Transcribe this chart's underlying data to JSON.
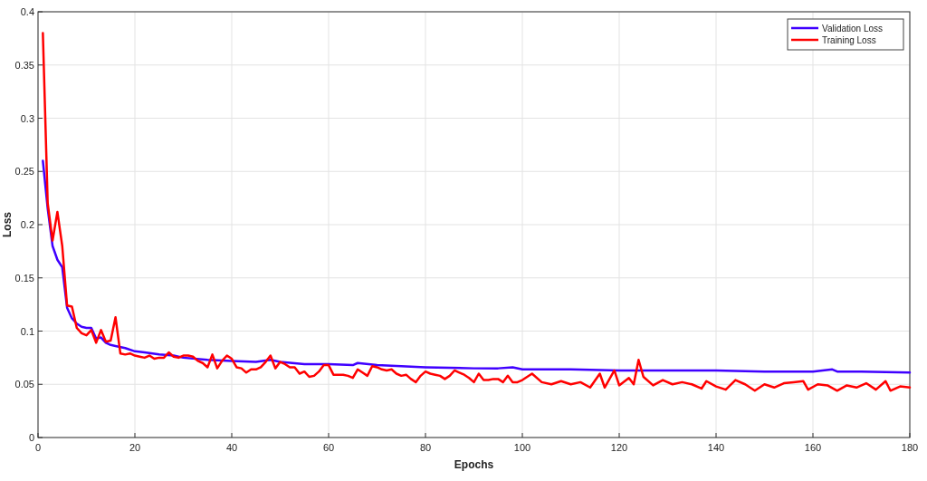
{
  "chart_data": {
    "type": "line",
    "xlabel": "Epochs",
    "ylabel": "Loss",
    "xlim": [
      0,
      180
    ],
    "ylim": [
      0,
      0.4
    ],
    "xticks": [
      0,
      20,
      40,
      60,
      80,
      100,
      120,
      140,
      160,
      180
    ],
    "yticks": [
      0,
      0.05,
      0.1,
      0.15,
      0.2,
      0.25,
      0.3,
      0.35,
      0.4
    ],
    "grid": true,
    "legend": "top right",
    "marker": "none",
    "line_style": "solid",
    "series": [
      {
        "name": "Validation Loss",
        "color": "#3f00ff",
        "x": [
          1,
          2,
          3,
          4,
          5,
          6,
          7,
          8,
          9,
          10,
          11,
          12,
          13,
          14,
          15,
          16,
          18,
          20,
          22,
          25,
          28,
          30,
          35,
          40,
          45,
          48,
          50,
          55,
          60,
          65,
          66,
          70,
          75,
          80,
          90,
          95,
          98,
          100,
          110,
          120,
          130,
          140,
          150,
          160,
          164,
          165,
          170,
          180
        ],
        "values": [
          0.26,
          0.215,
          0.18,
          0.167,
          0.16,
          0.122,
          0.112,
          0.107,
          0.104,
          0.103,
          0.103,
          0.093,
          0.094,
          0.089,
          0.087,
          0.086,
          0.084,
          0.081,
          0.08,
          0.078,
          0.077,
          0.075,
          0.073,
          0.072,
          0.071,
          0.073,
          0.071,
          0.069,
          0.069,
          0.068,
          0.07,
          0.068,
          0.067,
          0.066,
          0.065,
          0.065,
          0.066,
          0.064,
          0.064,
          0.063,
          0.063,
          0.063,
          0.062,
          0.062,
          0.064,
          0.062,
          0.062,
          0.061
        ]
      },
      {
        "name": "Training Loss",
        "color": "#ff0000",
        "x": [
          1,
          2,
          3,
          4,
          5,
          6,
          7,
          8,
          9,
          10,
          11,
          12,
          13,
          14,
          15,
          16,
          17,
          18,
          19,
          20,
          21,
          22,
          23,
          24,
          25,
          26,
          27,
          28,
          29,
          30,
          31,
          32,
          33,
          34,
          35,
          36,
          37,
          38,
          39,
          40,
          41,
          42,
          43,
          44,
          45,
          46,
          47,
          48,
          49,
          50,
          51,
          52,
          53,
          54,
          55,
          56,
          57,
          58,
          59,
          60,
          61,
          62,
          63,
          64,
          65,
          66,
          67,
          68,
          69,
          70,
          71,
          72,
          73,
          74,
          75,
          76,
          77,
          78,
          79,
          80,
          81,
          82,
          83,
          84,
          85,
          86,
          87,
          88,
          89,
          90,
          91,
          92,
          93,
          94,
          95,
          96,
          97,
          98,
          99,
          100,
          102,
          104,
          106,
          108,
          110,
          112,
          114,
          116,
          117,
          119,
          120,
          122,
          123,
          124,
          125,
          127,
          129,
          131,
          133,
          135,
          137,
          138,
          140,
          142,
          144,
          146,
          148,
          150,
          152,
          154,
          156,
          158,
          159,
          161,
          163,
          165,
          167,
          169,
          171,
          173,
          175,
          176,
          178,
          180
        ],
        "values": [
          0.38,
          0.22,
          0.185,
          0.212,
          0.18,
          0.124,
          0.123,
          0.103,
          0.098,
          0.096,
          0.101,
          0.089,
          0.101,
          0.09,
          0.091,
          0.113,
          0.079,
          0.078,
          0.079,
          0.077,
          0.076,
          0.075,
          0.077,
          0.074,
          0.075,
          0.075,
          0.08,
          0.076,
          0.075,
          0.077,
          0.077,
          0.076,
          0.072,
          0.07,
          0.066,
          0.078,
          0.065,
          0.072,
          0.077,
          0.074,
          0.066,
          0.065,
          0.061,
          0.064,
          0.064,
          0.066,
          0.071,
          0.077,
          0.065,
          0.071,
          0.069,
          0.066,
          0.066,
          0.06,
          0.062,
          0.057,
          0.058,
          0.062,
          0.068,
          0.068,
          0.059,
          0.059,
          0.059,
          0.058,
          0.056,
          0.064,
          0.061,
          0.058,
          0.067,
          0.066,
          0.064,
          0.063,
          0.064,
          0.06,
          0.058,
          0.059,
          0.055,
          0.052,
          0.058,
          0.062,
          0.06,
          0.059,
          0.058,
          0.055,
          0.058,
          0.063,
          0.061,
          0.059,
          0.056,
          0.052,
          0.06,
          0.054,
          0.054,
          0.055,
          0.055,
          0.052,
          0.058,
          0.052,
          0.052,
          0.054,
          0.06,
          0.052,
          0.05,
          0.053,
          0.05,
          0.052,
          0.047,
          0.06,
          0.047,
          0.063,
          0.049,
          0.056,
          0.05,
          0.073,
          0.057,
          0.049,
          0.054,
          0.05,
          0.052,
          0.05,
          0.046,
          0.053,
          0.048,
          0.045,
          0.054,
          0.05,
          0.044,
          0.05,
          0.047,
          0.051,
          0.052,
          0.053,
          0.045,
          0.05,
          0.049,
          0.044,
          0.049,
          0.047,
          0.051,
          0.045,
          0.053,
          0.044,
          0.048,
          0.047
        ]
      }
    ]
  }
}
